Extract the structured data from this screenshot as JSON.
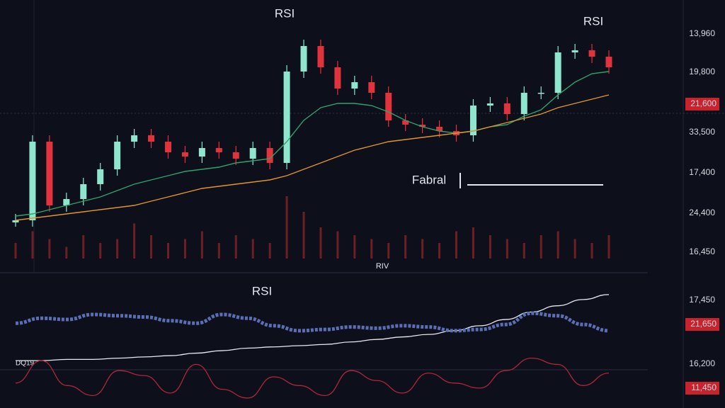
{
  "chart_data": [
    {
      "type": "candlestick",
      "annotations": [
        "RSI",
        "RSI",
        "Fabral",
        "RIV"
      ],
      "axis_labels": [
        "13,960",
        "19,800",
        "33,500",
        "17,400",
        "24,400",
        "16,450"
      ],
      "badge_labels": [
        "21,600"
      ],
      "ylim": [
        0,
        100
      ],
      "up_color": "#8fe6cf",
      "down_color": "#e0333b",
      "open": [
        2,
        3,
        40,
        10,
        13,
        20,
        27,
        40,
        43,
        40,
        35,
        33,
        37,
        35,
        32,
        37,
        30,
        73,
        85,
        75,
        65,
        68,
        63,
        50,
        48,
        47,
        45,
        43,
        57,
        58,
        53,
        63,
        63,
        82,
        83,
        80
      ],
      "high": [
        6,
        43,
        43,
        16,
        23,
        30,
        43,
        46,
        46,
        43,
        38,
        40,
        40,
        38,
        40,
        40,
        76,
        88,
        88,
        78,
        71,
        71,
        66,
        53,
        51,
        50,
        48,
        60,
        61,
        61,
        66,
        66,
        85,
        86,
        86,
        83
      ],
      "low": [
        0,
        0,
        7,
        7,
        10,
        17,
        24,
        37,
        37,
        32,
        30,
        30,
        32,
        29,
        29,
        27,
        27,
        70,
        72,
        62,
        62,
        60,
        47,
        45,
        44,
        42,
        40,
        40,
        54,
        50,
        50,
        60,
        60,
        79,
        77,
        72
      ],
      "close": [
        3,
        40,
        10,
        13,
        20,
        27,
        40,
        43,
        40,
        35,
        33,
        37,
        35,
        32,
        37,
        30,
        73,
        85,
        75,
        65,
        68,
        63,
        50,
        48,
        47,
        45,
        43,
        57,
        58,
        53,
        63,
        63,
        82,
        83,
        80,
        75
      ],
      "series": [
        {
          "color": "#2fa36b",
          "values": [
            5,
            6,
            8,
            10,
            12,
            14,
            17,
            20,
            22,
            24,
            26,
            27,
            28,
            30,
            31,
            32,
            40,
            50,
            56,
            58,
            58,
            57,
            54,
            50,
            47,
            45,
            44,
            45,
            47,
            48,
            52,
            55,
            62,
            68,
            72,
            73
          ]
        },
        {
          "color": "#e0962c",
          "values": [
            3,
            4,
            5,
            6,
            7,
            8,
            9,
            10,
            12,
            14,
            16,
            18,
            19,
            20,
            21,
            22,
            24,
            27,
            30,
            33,
            36,
            38,
            40,
            41,
            42,
            43,
            44,
            45,
            47,
            49,
            51,
            53,
            56,
            58,
            60,
            62
          ]
        }
      ],
      "volume": {
        "color": "#6e1f24",
        "ylim": [
          0,
          100
        ],
        "values": [
          20,
          35,
          25,
          15,
          30,
          20,
          25,
          45,
          30,
          20,
          25,
          35,
          20,
          30,
          25,
          20,
          80,
          60,
          40,
          35,
          30,
          25,
          20,
          30,
          25,
          20,
          35,
          40,
          30,
          25,
          20,
          30,
          35,
          25,
          20,
          30
        ]
      }
    },
    {
      "type": "line",
      "title": "RSI",
      "annotations": [
        "DQ19"
      ],
      "axis_labels": [
        "17,450",
        "16,200"
      ],
      "badge_labels": [
        "21,650",
        "11,450"
      ],
      "ylim": [
        0,
        100
      ],
      "series": [
        {
          "color": "#e8e8f0",
          "values": [
            38,
            38,
            39,
            39,
            40,
            41,
            42,
            44,
            46,
            48,
            49,
            50,
            51,
            53,
            55,
            57,
            59,
            62,
            66,
            71,
            77,
            82,
            87,
            91
          ]
        },
        {
          "color": "#5a6fb5",
          "values": [
            68,
            72,
            71,
            75,
            74,
            73,
            70,
            68,
            75,
            72,
            66,
            62,
            63,
            65,
            64,
            66,
            65,
            62,
            63,
            67,
            76,
            74,
            67,
            62
          ]
        },
        {
          "color": "#b0263a",
          "values": [
            20,
            38,
            18,
            10,
            30,
            26,
            12,
            35,
            15,
            8,
            25,
            18,
            10,
            30,
            22,
            12,
            28,
            20,
            16,
            30,
            40,
            35,
            18,
            28
          ]
        }
      ]
    }
  ]
}
